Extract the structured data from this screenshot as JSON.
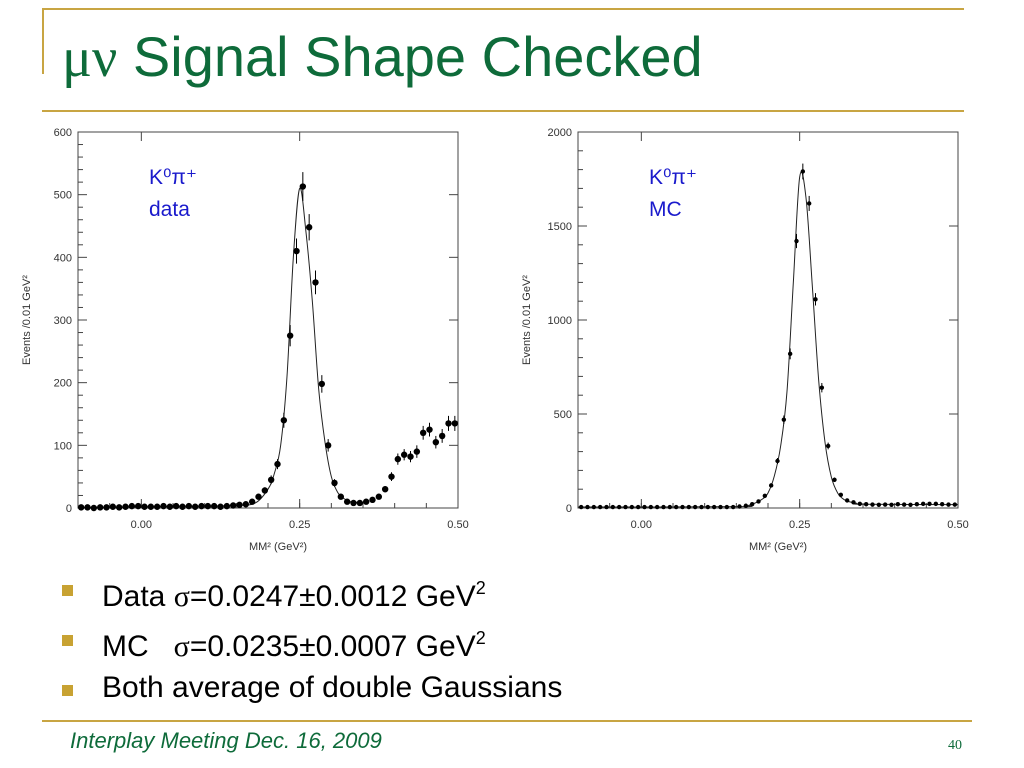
{
  "slide": {
    "title_greek": "μν",
    "title_text": "Signal Shape Checked",
    "footer": "Interplay Meeting Dec. 16, 2009",
    "page_number": "40",
    "bullets": [
      {
        "pre": "Data ",
        "sigma": "σ",
        "post": "=0.0247±0.0012 GeV",
        "sup": "2"
      },
      {
        "pre": "MC   ",
        "sigma": "σ",
        "post": "=0.0235±0.0007 GeV",
        "sup": "2"
      },
      {
        "pre": "Both average of double Gaussians",
        "sigma": "",
        "post": "",
        "sup": ""
      }
    ]
  },
  "colors": {
    "title": "#0e6b3a",
    "rule": "#c8a543",
    "bullet": "#c8a232",
    "annotation": "#1a1acc",
    "points": "#000000"
  },
  "chart_data": [
    {
      "type": "scatter",
      "title": "",
      "xlabel": "MM² (GeV²)",
      "ylabel": "Events /0.01 GeV²",
      "xlim": [
        -0.1,
        0.5
      ],
      "ylim": [
        0,
        600
      ],
      "xticks": [
        0.0,
        0.25,
        0.5
      ],
      "xtick_labels": [
        "0.00",
        "0.25",
        "0.50"
      ],
      "yticks": [
        0,
        100,
        200,
        300,
        400,
        500,
        600
      ],
      "ytick_labels": [
        "0",
        "100",
        "200",
        "300",
        "400",
        "500",
        "600"
      ],
      "annotation": [
        "K⁰π⁺",
        "data"
      ],
      "fit_curve": true,
      "series": [
        {
          "name": "",
          "x": [
            -0.095,
            -0.085,
            -0.075,
            -0.065,
            -0.055,
            -0.045,
            -0.035,
            -0.025,
            -0.015,
            -0.005,
            0.005,
            0.015,
            0.025,
            0.035,
            0.045,
            0.055,
            0.065,
            0.075,
            0.085,
            0.095,
            0.105,
            0.115,
            0.125,
            0.135,
            0.145,
            0.155,
            0.165,
            0.175,
            0.185,
            0.195,
            0.205,
            0.215,
            0.225,
            0.235,
            0.245,
            0.255,
            0.265,
            0.275,
            0.285,
            0.295,
            0.305,
            0.315,
            0.325,
            0.335,
            0.345,
            0.355,
            0.365,
            0.375,
            0.385,
            0.395,
            0.405,
            0.415,
            0.425,
            0.435,
            0.445,
            0.455,
            0.465,
            0.475,
            0.485,
            0.495
          ],
          "y": [
            1,
            1,
            0,
            1,
            1,
            2,
            1,
            2,
            3,
            3,
            2,
            2,
            2,
            3,
            2,
            3,
            2,
            3,
            2,
            3,
            3,
            3,
            2,
            3,
            4,
            5,
            6,
            10,
            18,
            28,
            45,
            70,
            140,
            275,
            410,
            513,
            448,
            360,
            198,
            100,
            40,
            18,
            10,
            8,
            8,
            10,
            13,
            18,
            30,
            50,
            78,
            85,
            82,
            90,
            120,
            125,
            105,
            115,
            135,
            135
          ],
          "err": [
            1,
            1,
            1,
            1,
            1,
            1,
            1,
            1,
            2,
            2,
            1,
            1,
            1,
            2,
            1,
            2,
            1,
            2,
            1,
            2,
            2,
            2,
            1,
            2,
            2,
            2,
            2,
            3,
            4,
            5,
            7,
            8,
            12,
            17,
            20,
            23,
            21,
            19,
            14,
            10,
            6,
            4,
            3,
            3,
            3,
            3,
            4,
            4,
            5,
            7,
            9,
            9,
            9,
            10,
            11,
            11,
            10,
            11,
            12,
            12
          ],
          "fit": [
            [
              -0.1,
              1
            ],
            [
              0.1,
              3
            ],
            [
              0.15,
              4
            ],
            [
              0.18,
              8
            ],
            [
              0.2,
              30
            ],
            [
              0.21,
              55
            ],
            [
              0.22,
              100
            ],
            [
              0.23,
              210
            ],
            [
              0.24,
              400
            ],
            [
              0.25,
              510
            ],
            [
              0.26,
              440
            ],
            [
              0.27,
              330
            ],
            [
              0.28,
              190
            ],
            [
              0.29,
              105
            ],
            [
              0.3,
              50
            ],
            [
              0.31,
              25
            ],
            [
              0.32,
              15
            ],
            [
              0.33,
              10
            ],
            [
              0.34,
              9
            ],
            [
              0.35,
              9
            ],
            [
              0.36,
              10
            ]
          ]
        }
      ]
    },
    {
      "type": "scatter",
      "title": "",
      "xlabel": "MM² (GeV²)",
      "ylabel": "Events /0.01 GeV²",
      "xlim": [
        -0.1,
        0.5
      ],
      "ylim": [
        0,
        2000
      ],
      "xticks": [
        0.0,
        0.25,
        0.5
      ],
      "xtick_labels": [
        "0.00",
        "0.25",
        "0.50"
      ],
      "yticks": [
        0,
        500,
        1000,
        1500,
        2000
      ],
      "ytick_labels": [
        "0",
        "500",
        "1000",
        "1500",
        "2000"
      ],
      "annotation": [
        "K⁰π⁺",
        "MC"
      ],
      "fit_curve": true,
      "series": [
        {
          "name": "",
          "x": [
            -0.095,
            -0.085,
            -0.075,
            -0.065,
            -0.055,
            -0.045,
            -0.035,
            -0.025,
            -0.015,
            -0.005,
            0.005,
            0.015,
            0.025,
            0.035,
            0.045,
            0.055,
            0.065,
            0.075,
            0.085,
            0.095,
            0.105,
            0.115,
            0.125,
            0.135,
            0.145,
            0.155,
            0.165,
            0.175,
            0.185,
            0.195,
            0.205,
            0.215,
            0.225,
            0.235,
            0.245,
            0.255,
            0.265,
            0.275,
            0.285,
            0.295,
            0.305,
            0.315,
            0.325,
            0.335,
            0.345,
            0.355,
            0.365,
            0.375,
            0.385,
            0.395,
            0.405,
            0.415,
            0.425,
            0.435,
            0.445,
            0.455,
            0.465,
            0.475,
            0.485,
            0.495
          ],
          "y": [
            5,
            5,
            5,
            5,
            5,
            5,
            5,
            5,
            5,
            5,
            5,
            5,
            5,
            5,
            5,
            5,
            5,
            5,
            5,
            5,
            5,
            5,
            5,
            5,
            5,
            8,
            12,
            20,
            35,
            65,
            120,
            250,
            470,
            820,
            1420,
            1790,
            1620,
            1110,
            640,
            330,
            150,
            70,
            40,
            30,
            22,
            20,
            18,
            17,
            18,
            17,
            20,
            18,
            17,
            20,
            22,
            22,
            22,
            20,
            18,
            18
          ],
          "err": [
            2,
            2,
            2,
            2,
            2,
            2,
            2,
            2,
            2,
            2,
            2,
            2,
            2,
            2,
            2,
            2,
            2,
            2,
            2,
            2,
            2,
            2,
            2,
            2,
            2,
            3,
            3,
            4,
            6,
            8,
            11,
            16,
            22,
            29,
            38,
            42,
            40,
            33,
            25,
            18,
            12,
            8,
            6,
            5,
            5,
            4,
            4,
            4,
            4,
            4,
            4,
            4,
            4,
            4,
            5,
            5,
            5,
            4,
            4,
            4
          ],
          "fit": [
            [
              -0.1,
              5
            ],
            [
              0.15,
              7
            ],
            [
              0.17,
              15
            ],
            [
              0.19,
              45
            ],
            [
              0.2,
              80
            ],
            [
              0.21,
              170
            ],
            [
              0.22,
              330
            ],
            [
              0.23,
              620
            ],
            [
              0.24,
              1200
            ],
            [
              0.25,
              1760
            ],
            [
              0.26,
              1650
            ],
            [
              0.27,
              1180
            ],
            [
              0.28,
              680
            ],
            [
              0.29,
              350
            ],
            [
              0.3,
              165
            ],
            [
              0.31,
              80
            ],
            [
              0.32,
              45
            ],
            [
              0.33,
              32
            ],
            [
              0.34,
              25
            ],
            [
              0.35,
              20
            ],
            [
              0.5,
              18
            ]
          ]
        }
      ]
    }
  ]
}
